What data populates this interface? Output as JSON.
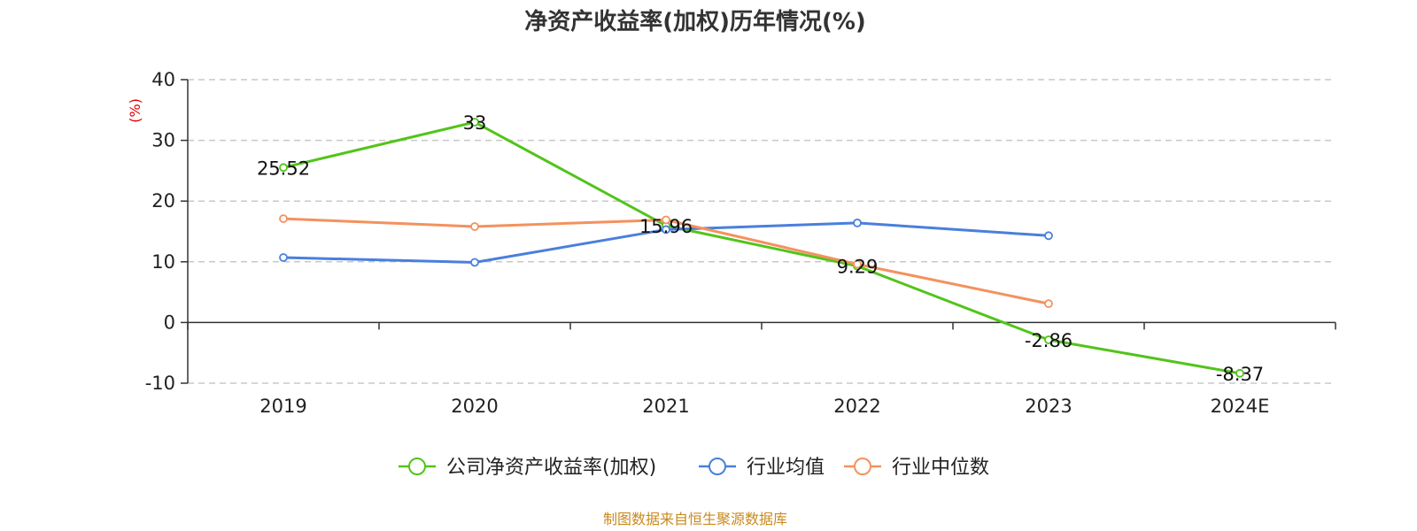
{
  "chart_data": {
    "type": "line",
    "title": "净资产收益率(加权)历年情况(%)",
    "ylabel": "(%)",
    "xlabel": "",
    "categories": [
      "2019",
      "2020",
      "2021",
      "2022",
      "2023",
      "2024E"
    ],
    "ylim": [
      -10,
      40
    ],
    "yticks": [
      -10,
      0,
      10,
      20,
      30,
      40
    ],
    "grid": true,
    "legend_position": "bottom-center",
    "series": [
      {
        "name": "公司净资产收益率(加权)",
        "color": "#52c41a",
        "values": [
          25.52,
          33,
          15.96,
          9.29,
          -2.86,
          -8.37
        ],
        "data_labels": [
          "25.52",
          "33",
          "15.96",
          "9.29",
          "-2.86",
          "-8.37"
        ]
      },
      {
        "name": "行业均值",
        "color": "#4a7fdc",
        "values": [
          10.7,
          9.9,
          15.3,
          16.4,
          14.3,
          null
        ]
      },
      {
        "name": "行业中位数",
        "color": "#f4915e",
        "values": [
          17.1,
          15.8,
          16.9,
          9.6,
          3.1,
          null
        ]
      }
    ],
    "source": "制图数据来自恒生聚源数据库"
  }
}
